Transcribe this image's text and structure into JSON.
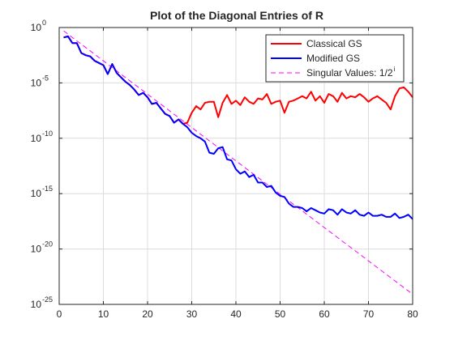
{
  "chart_data": {
    "type": "line",
    "title": "Plot of the Diagonal Entries of R",
    "xlabel": "",
    "ylabel": "",
    "y_scale": "log",
    "xlim": [
      0,
      80
    ],
    "ylim_exp": [
      -25,
      0
    ],
    "xticks": [
      "0",
      "10",
      "20",
      "30",
      "40",
      "50",
      "60",
      "70",
      "80"
    ],
    "yticks": [
      {
        "base": "10",
        "exp": "0",
        "value": 0
      },
      {
        "base": "10",
        "exp": "-5",
        "value": -5
      },
      {
        "base": "10",
        "exp": "-10",
        "value": -10
      },
      {
        "base": "10",
        "exp": "-15",
        "value": -15
      },
      {
        "base": "10",
        "exp": "-20",
        "value": -20
      },
      {
        "base": "10",
        "exp": "-25",
        "value": -25
      }
    ],
    "grid": true,
    "legend_position": "top-right",
    "series": [
      {
        "name": "Classical GS",
        "color": "#ff0000",
        "style": "solid",
        "x": [
          1,
          2,
          3,
          4,
          5,
          6,
          7,
          8,
          9,
          10,
          11,
          12,
          13,
          14,
          15,
          16,
          17,
          18,
          19,
          20,
          21,
          22,
          23,
          24,
          25,
          26,
          27,
          28,
          29,
          30,
          31,
          32,
          33,
          34,
          35,
          36,
          37,
          38,
          39,
          40,
          41,
          42,
          43,
          44,
          45,
          46,
          47,
          48,
          49,
          50,
          51,
          52,
          53,
          54,
          55,
          56,
          57,
          58,
          59,
          60,
          61,
          62,
          63,
          64,
          65,
          66,
          67,
          68,
          69,
          70,
          71,
          72,
          73,
          74,
          75,
          76,
          77,
          78,
          79,
          80
        ],
        "y_log10": [
          -0.9,
          -0.8,
          -1.4,
          -1.4,
          -2.3,
          -2.5,
          -2.6,
          -3.0,
          -3.2,
          -3.4,
          -4.2,
          -3.3,
          -4.1,
          -4.5,
          -4.9,
          -5.2,
          -5.6,
          -6.1,
          -5.9,
          -6.3,
          -6.9,
          -6.8,
          -7.3,
          -7.8,
          -8.0,
          -8.6,
          -8.3,
          -8.7,
          -8.6,
          -7.7,
          -7.1,
          -7.4,
          -6.8,
          -6.7,
          -6.7,
          -8.1,
          -6.8,
          -6.1,
          -6.9,
          -6.6,
          -7.0,
          -6.3,
          -6.7,
          -6.9,
          -6.4,
          -6.5,
          -6.0,
          -6.9,
          -6.7,
          -6.6,
          -7.7,
          -6.7,
          -6.6,
          -6.4,
          -6.2,
          -6.4,
          -5.8,
          -6.6,
          -6.2,
          -6.8,
          -6.0,
          -6.2,
          -6.7,
          -5.9,
          -6.4,
          -6.2,
          -6.3,
          -6.0,
          -6.3,
          -6.7,
          -6.4,
          -6.2,
          -6.5,
          -6.8,
          -7.4,
          -6.2,
          -5.5,
          -5.4,
          -5.8,
          -6.3
        ]
      },
      {
        "name": "Modified GS",
        "color": "#0000ff",
        "style": "solid",
        "x": [
          1,
          2,
          3,
          4,
          5,
          6,
          7,
          8,
          9,
          10,
          11,
          12,
          13,
          14,
          15,
          16,
          17,
          18,
          19,
          20,
          21,
          22,
          23,
          24,
          25,
          26,
          27,
          28,
          29,
          30,
          31,
          32,
          33,
          34,
          35,
          36,
          37,
          38,
          39,
          40,
          41,
          42,
          43,
          44,
          45,
          46,
          47,
          48,
          49,
          50,
          51,
          52,
          53,
          54,
          55,
          56,
          57,
          58,
          59,
          60,
          61,
          62,
          63,
          64,
          65,
          66,
          67,
          68,
          69,
          70,
          71,
          72,
          73,
          74,
          75,
          76,
          77,
          78,
          79,
          80
        ],
        "y_log10": [
          -0.9,
          -0.8,
          -1.4,
          -1.4,
          -2.3,
          -2.5,
          -2.6,
          -3.0,
          -3.2,
          -3.4,
          -4.2,
          -3.3,
          -4.1,
          -4.5,
          -4.9,
          -5.2,
          -5.6,
          -6.1,
          -5.9,
          -6.3,
          -6.9,
          -6.8,
          -7.3,
          -7.8,
          -8.0,
          -8.6,
          -8.3,
          -8.7,
          -9.0,
          -9.5,
          -9.8,
          -10.0,
          -10.3,
          -11.3,
          -11.4,
          -10.9,
          -10.8,
          -11.9,
          -12.0,
          -12.8,
          -13.2,
          -13.0,
          -13.5,
          -13.3,
          -14.0,
          -14.0,
          -14.4,
          -14.3,
          -14.9,
          -15.2,
          -15.3,
          -15.9,
          -16.2,
          -16.2,
          -16.3,
          -16.6,
          -16.3,
          -16.5,
          -16.7,
          -16.8,
          -16.4,
          -16.5,
          -16.9,
          -16.4,
          -16.7,
          -16.8,
          -16.5,
          -16.9,
          -17.0,
          -16.7,
          -17.0,
          -17.0,
          -16.9,
          -17.1,
          -17.1,
          -16.8,
          -17.2,
          -17.1,
          -16.9,
          -17.3
        ]
      },
      {
        "name": "Singular Values: 1/2",
        "legend_superscript": "i",
        "color": "#ff00ff",
        "style": "dashed",
        "base": 0.5,
        "x_range": [
          1,
          80
        ]
      }
    ]
  }
}
